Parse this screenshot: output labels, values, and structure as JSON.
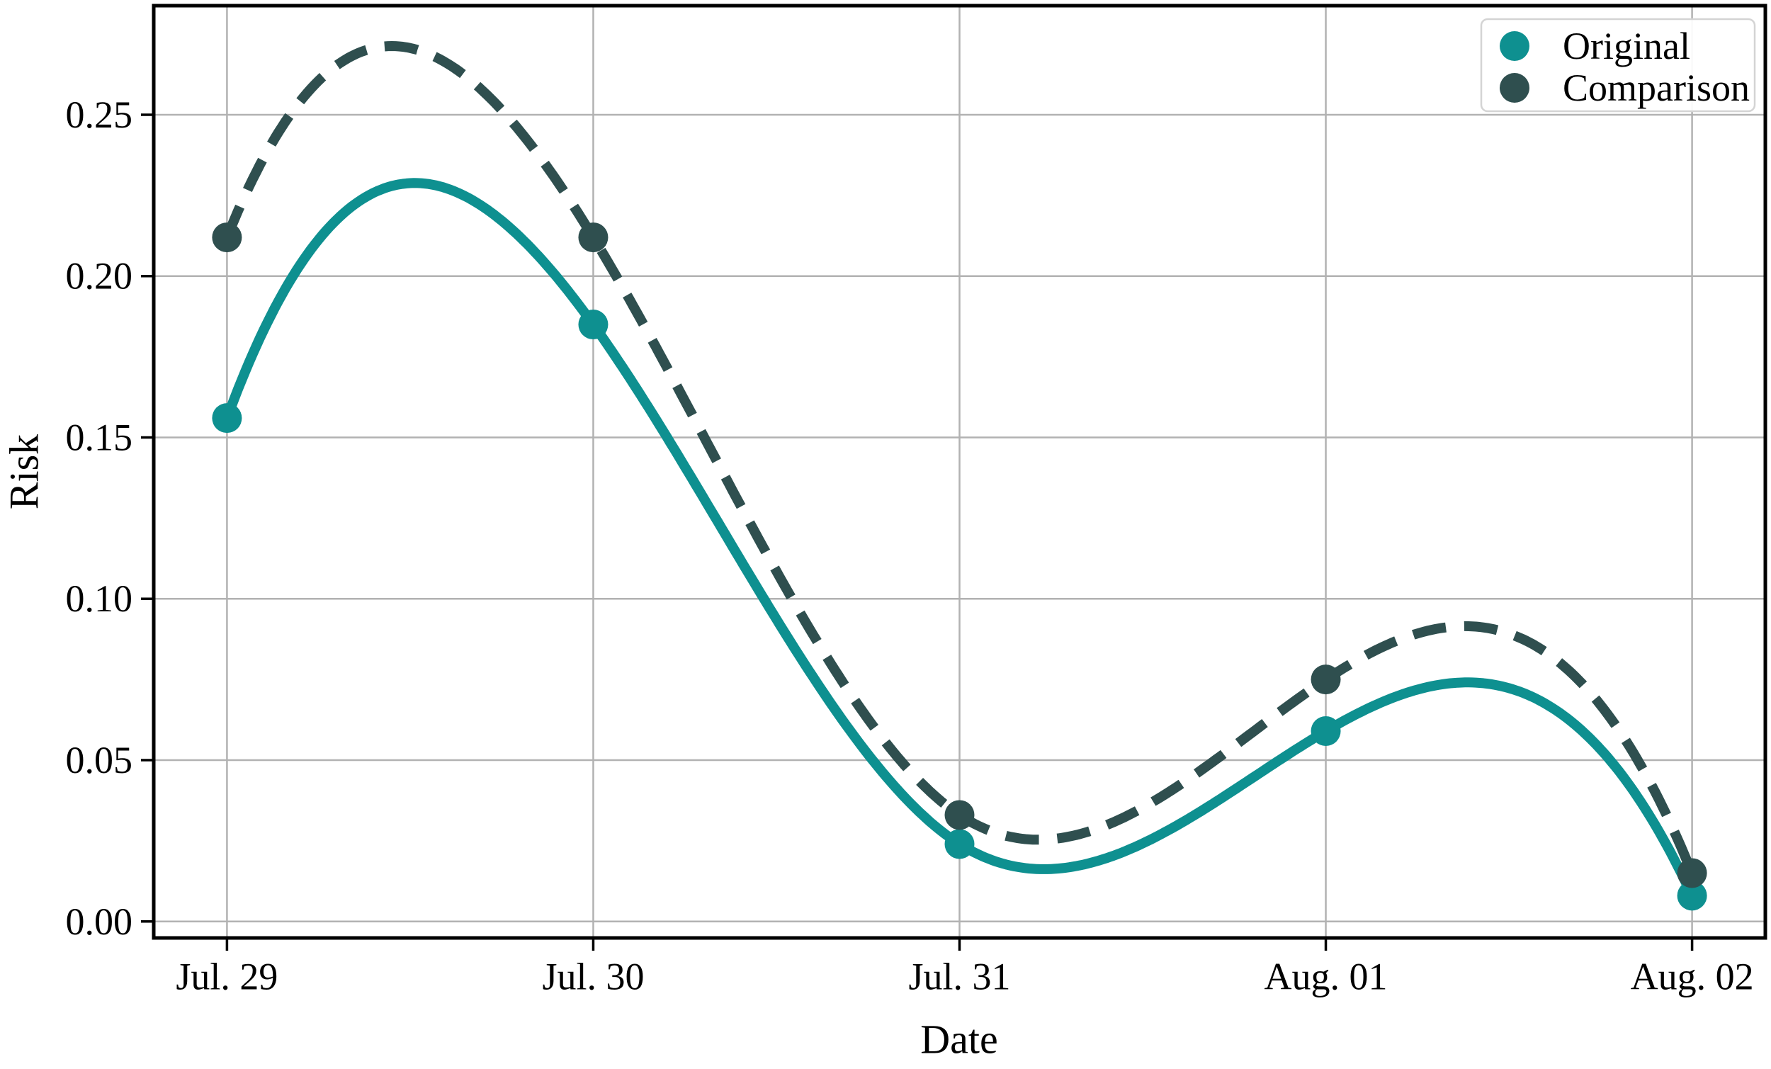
{
  "chart_data": {
    "type": "line",
    "title": "",
    "xlabel": "Date",
    "ylabel": "Risk",
    "categories": [
      "Jul. 29",
      "Jul. 30",
      "Jul. 31",
      "Aug. 01",
      "Aug. 02"
    ],
    "x": [
      0,
      1,
      2,
      3,
      4
    ],
    "series": [
      {
        "name": "Original",
        "values": [
          0.156,
          0.185,
          0.024,
          0.059,
          0.008
        ],
        "color": "#0E9090",
        "line_style": "solid",
        "markers": true
      },
      {
        "name": "Comparison",
        "values": [
          0.212,
          0.212,
          0.033,
          0.075,
          0.015
        ],
        "color": "#2F4F4F",
        "line_style": "dashed",
        "markers": true
      }
    ],
    "y_ticks": {
      "values": [
        0.0,
        0.05,
        0.1,
        0.15,
        0.2,
        0.25
      ],
      "labels": [
        "0.00",
        "0.05",
        "0.10",
        "0.15",
        "0.20",
        "0.25"
      ]
    },
    "xlim": [
      -0.2,
      4.2
    ],
    "ylim": [
      -0.0051,
      0.2838
    ],
    "grid": true,
    "grid_color": "#b2b2b2",
    "axis_color": "#000000",
    "smoothing": "cubic-spline",
    "legend": {
      "position": "upper right",
      "entries": [
        "Original",
        "Comparison"
      ]
    }
  }
}
